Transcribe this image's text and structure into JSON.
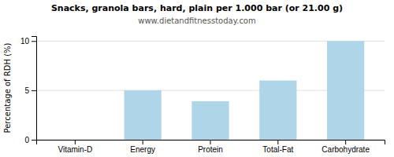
{
  "chart_data": {
    "type": "bar",
    "title": "Snacks, granola bars, hard, plain per 1.000 bar (or 21.00 g)",
    "subtitle": "www.dietandfitnesstoday.com",
    "ylabel": "Percentage of RDH (%)",
    "categories": [
      "Vitamin-D",
      "Energy",
      "Protein",
      "Total-Fat",
      "Carbohydrate"
    ],
    "values": [
      0,
      5.0,
      3.9,
      6.0,
      10.0
    ],
    "color": "#aed6e8",
    "ylim": [
      0,
      10.5
    ],
    "yticks": [
      0,
      5,
      10
    ],
    "grid": true
  }
}
